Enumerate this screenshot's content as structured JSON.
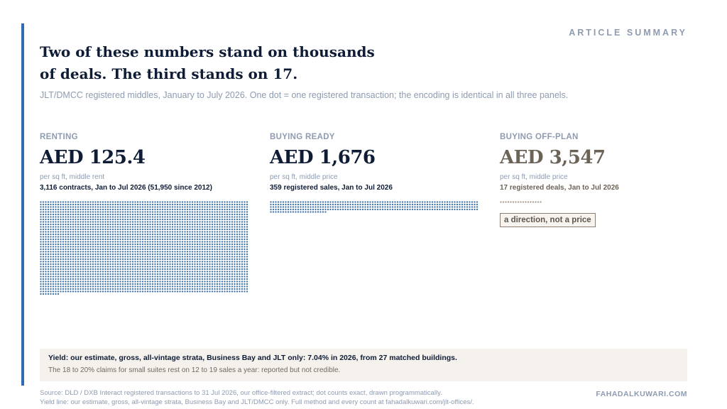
{
  "header": {
    "kicker": "ARTICLE SUMMARY",
    "title_line1": "Two of these numbers stand on thousands",
    "title_line2": "of deals. The third stands on 17.",
    "subtitle": "JLT/DMCC registered middles, January to July 2026. One dot = one registered transaction; the encoding is identical in all three panels."
  },
  "panels": [
    {
      "label": "RENTING",
      "value": "AED 125.4",
      "unit": "per sq ft, middle rent",
      "count_text": "3,116 contracts, Jan to Jul 2026 (51,950 since 2012)",
      "dot_count": 3116,
      "dot_color": "#3a6ea5"
    },
    {
      "label": "BUYING READY",
      "value": "AED 1,676",
      "unit": "per sq ft, middle price",
      "count_text": "359 registered sales, Jan to Jul 2026",
      "dot_count": 359,
      "dot_color": "#3a6ea5"
    },
    {
      "label": "BUYING OFF-PLAN",
      "value": "AED 3,547",
      "unit": "per sq ft, middle price",
      "count_text": "17 registered deals, Jan to Jul 2026",
      "dot_count": 17,
      "dot_color": "#a49a8e",
      "badge": "a direction, not a price"
    }
  ],
  "yield": {
    "main": "Yield: our estimate, gross, all-vintage strata, Business Bay and JLT only: 7.04% in 2026, from 27 matched buildings.",
    "sub": "The 18 to 20% claims for small suites rest on 12 to 19 sales a year: reported but not credible."
  },
  "footer": {
    "source_line1": "Source: DLD / DXB Interact registered transactions to 31 Jul 2026, our office-filtered extract; dot counts exact, drawn programmatically.",
    "source_line2": "Yield line: our estimate, gross, all-vintage strata, Business Bay and JLT/DMCC only. Full method and every count at fahadalkuwari.com/jlt-offices/.",
    "site": "FAHADALKUWARI.COM"
  }
}
